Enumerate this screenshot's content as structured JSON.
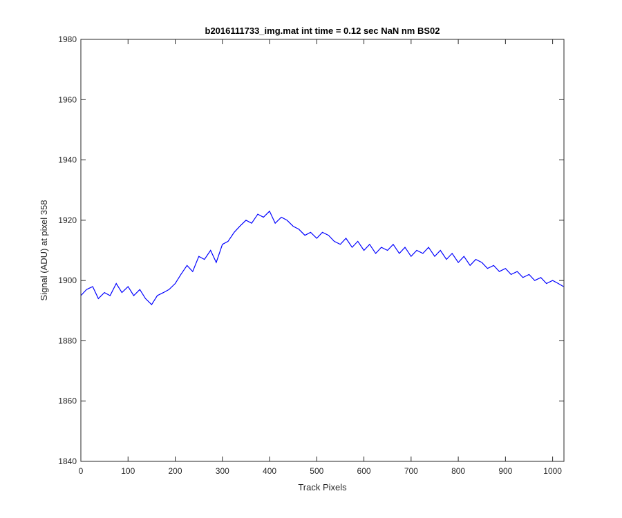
{
  "chart_data": {
    "type": "line",
    "title": "b2016111733_img.mat int time = 0.12 sec  NaN nm BS02",
    "xlabel": "Track Pixels",
    "ylabel": "Signal (ADU) at pixel 358",
    "xlim": [
      0,
      1024
    ],
    "ylim": [
      1840,
      1980
    ],
    "xticks": [
      0,
      100,
      200,
      300,
      400,
      500,
      600,
      700,
      800,
      900,
      1000
    ],
    "yticks": [
      1840,
      1860,
      1880,
      1900,
      1920,
      1940,
      1960,
      1980
    ],
    "grid": false,
    "series": [
      {
        "color": "#0000ff",
        "x": [
          0,
          12,
          25,
          37,
          50,
          62,
          75,
          87,
          100,
          112,
          125,
          137,
          150,
          162,
          175,
          187,
          200,
          212,
          225,
          237,
          250,
          262,
          275,
          287,
          300,
          312,
          325,
          337,
          350,
          362,
          375,
          387,
          400,
          412,
          425,
          437,
          450,
          462,
          475,
          487,
          500,
          512,
          525,
          537,
          550,
          562,
          575,
          587,
          600,
          612,
          625,
          637,
          650,
          662,
          675,
          687,
          700,
          712,
          725,
          737,
          750,
          762,
          775,
          787,
          800,
          812,
          825,
          837,
          850,
          862,
          875,
          887,
          900,
          912,
          925,
          937,
          950,
          962,
          975,
          987,
          1000,
          1012,
          1023
        ],
        "y": [
          1895,
          1897,
          1898,
          1894,
          1896,
          1895,
          1899,
          1896,
          1898,
          1895,
          1897,
          1894,
          1892,
          1895,
          1896,
          1897,
          1899,
          1902,
          1905,
          1903,
          1908,
          1907,
          1910,
          1906,
          1912,
          1913,
          1916,
          1918,
          1920,
          1919,
          1922,
          1921,
          1923,
          1919,
          1921,
          1920,
          1918,
          1917,
          1915,
          1916,
          1914,
          1916,
          1915,
          1913,
          1912,
          1914,
          1911,
          1913,
          1910,
          1912,
          1909,
          1911,
          1910,
          1912,
          1909,
          1911,
          1908,
          1910,
          1909,
          1911,
          1908,
          1910,
          1907,
          1909,
          1906,
          1908,
          1905,
          1907,
          1906,
          1904,
          1905,
          1903,
          1904,
          1902,
          1903,
          1901,
          1902,
          1900,
          1901,
          1899,
          1900,
          1899,
          1898
        ]
      }
    ]
  }
}
